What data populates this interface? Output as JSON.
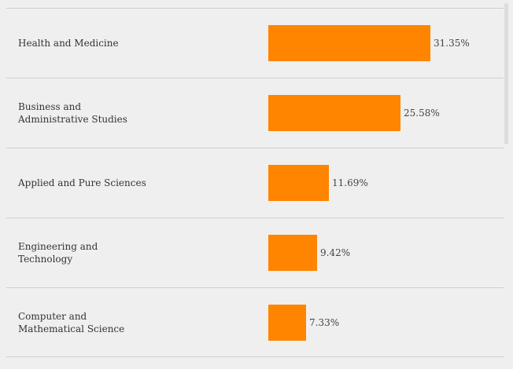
{
  "chart_data": {
    "type": "bar",
    "orientation": "horizontal",
    "categories": [
      "Health and Medicine",
      "Business and\nAdministrative Studies",
      "Applied and Pure Sciences",
      "Engineering and\nTechnology",
      "Computer and\nMathematical Science"
    ],
    "values": [
      31.35,
      25.58,
      11.69,
      9.42,
      7.33
    ],
    "value_labels": [
      "31.35%",
      "25.58%",
      "11.69%",
      "9.42%",
      "7.33%"
    ],
    "unit": "%",
    "bar_color": "#ff8400",
    "grid": false
  }
}
